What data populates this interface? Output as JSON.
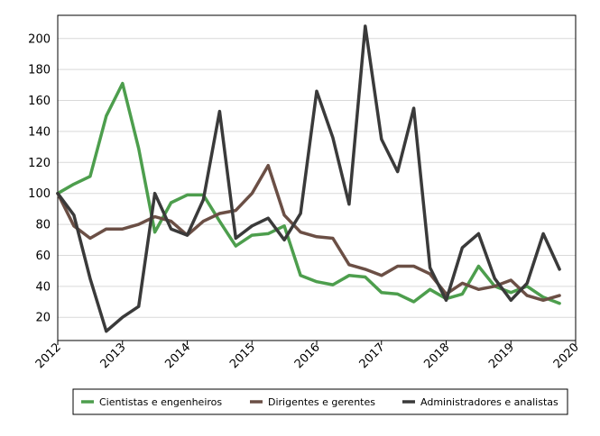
{
  "chart_data": {
    "type": "line",
    "title": "",
    "xlabel": "",
    "ylabel": "",
    "xlim": [
      2012,
      2020
    ],
    "ylim": [
      5,
      215
    ],
    "x_ticks": [
      "2012",
      "2013",
      "2014",
      "2015",
      "2016",
      "2017",
      "2018",
      "2019",
      "2020"
    ],
    "y_ticks": [
      "20",
      "40",
      "60",
      "80",
      "100",
      "120",
      "140",
      "160",
      "180",
      "200"
    ],
    "x_tick_values": [
      2012,
      2013,
      2014,
      2015,
      2016,
      2017,
      2018,
      2019,
      2020
    ],
    "y_tick_values": [
      20,
      40,
      60,
      80,
      100,
      120,
      140,
      160,
      180,
      200
    ],
    "grid": "horizontal",
    "legend": "bottom",
    "x": [
      2012.0,
      2012.25,
      2012.5,
      2012.75,
      2013.0,
      2013.25,
      2013.5,
      2013.75,
      2014.0,
      2014.25,
      2014.5,
      2014.75,
      2015.0,
      2015.25,
      2015.5,
      2015.75,
      2016.0,
      2016.25,
      2016.5,
      2016.75,
      2017.0,
      2017.25,
      2017.5,
      2017.75,
      2018.0,
      2018.25,
      2018.5,
      2018.75,
      2019.0,
      2019.25,
      2019.5,
      2019.75
    ],
    "series": [
      {
        "name": "Cientistas e engenheiros",
        "color": "#4d9e4d",
        "values": [
          100,
          106,
          111,
          150,
          171,
          129,
          75,
          94,
          99,
          99,
          82,
          66,
          73,
          74,
          79,
          47,
          43,
          41,
          47,
          46,
          36,
          35,
          30,
          38,
          32,
          35,
          53,
          40,
          36,
          40,
          33,
          29
        ]
      },
      {
        "name": "Dirigentes e gerentes",
        "color": "#6b4f45",
        "values": [
          100,
          79,
          71,
          77,
          77,
          80,
          85,
          82,
          73,
          82,
          87,
          89,
          100,
          118,
          86,
          75,
          72,
          71,
          54,
          51,
          47,
          53,
          53,
          48,
          35,
          42,
          38,
          40,
          44,
          34,
          31,
          34
        ]
      },
      {
        "name": "Administradores e analistas",
        "color": "#3a3a3a",
        "values": [
          100,
          86,
          45,
          11,
          20,
          27,
          100,
          77,
          73,
          96,
          153,
          71,
          79,
          84,
          70,
          87,
          166,
          136,
          93,
          208,
          135,
          114,
          155,
          52,
          31,
          65,
          74,
          45,
          31,
          42,
          74,
          51
        ]
      }
    ]
  }
}
